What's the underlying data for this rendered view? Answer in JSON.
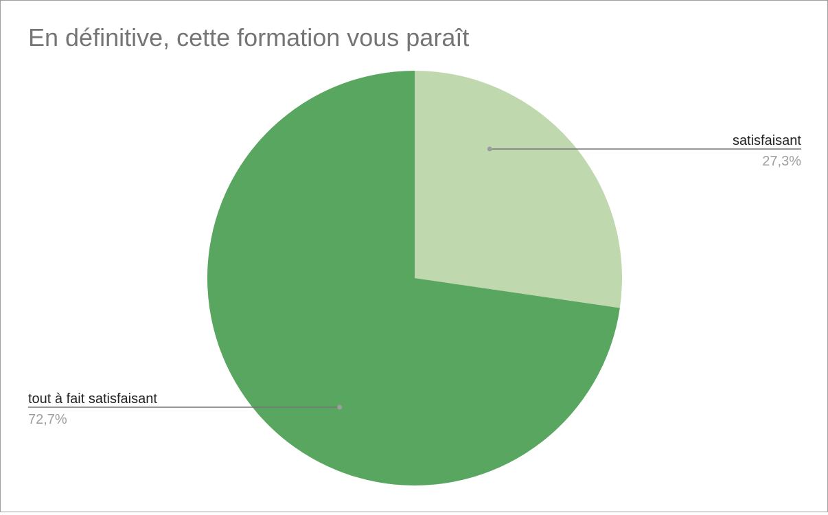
{
  "chart_data": {
    "type": "pie",
    "title": "En définitive, cette formation vous paraît",
    "series": [
      {
        "name": "satisfaisant",
        "value": 27.3,
        "label": "27,3%",
        "color": "#bfd8ae"
      },
      {
        "name": "tout à fait satisfaisant",
        "value": 72.7,
        "label": "72,7%",
        "color": "#58a65f"
      }
    ],
    "start_angle_deg": 0,
    "direction": "clockwise",
    "labels": "outside with leader lines"
  }
}
